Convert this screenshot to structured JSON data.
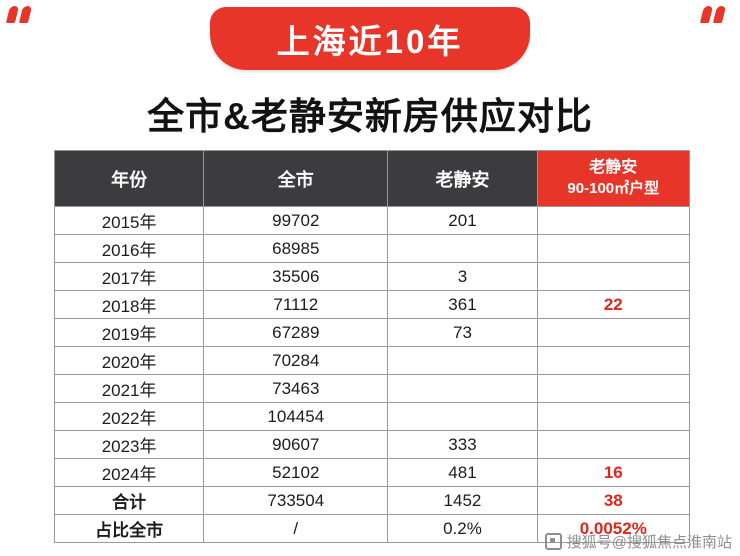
{
  "banner": {
    "label": "上海近10年",
    "color": "#e8352a"
  },
  "title": "全市&老静安新房供应对比",
  "chart_data": {
    "type": "table",
    "title": "全市&老静安新房供应对比",
    "columns": [
      "年份",
      "全市",
      "老静安",
      "老静安 90-100㎡户型"
    ],
    "header_col4_line1": "老静安",
    "header_col4_line2": "90-100㎡户型",
    "rows": [
      [
        "2015年",
        "99702",
        "201",
        ""
      ],
      [
        "2016年",
        "68985",
        "",
        ""
      ],
      [
        "2017年",
        "35506",
        "3",
        ""
      ],
      [
        "2018年",
        "71112",
        "361",
        "22"
      ],
      [
        "2019年",
        "67289",
        "73",
        ""
      ],
      [
        "2020年",
        "70284",
        "",
        ""
      ],
      [
        "2021年",
        "73463",
        "",
        ""
      ],
      [
        "2022年",
        "104454",
        "",
        ""
      ],
      [
        "2023年",
        "90607",
        "333",
        ""
      ],
      [
        "2024年",
        "52102",
        "481",
        "16"
      ],
      [
        "合计",
        "733504",
        "1452",
        "38"
      ],
      [
        "占比全市",
        "/",
        "0.2%",
        "0.0052%"
      ]
    ],
    "header_bg": "#3c3c3e",
    "header_highlight_bg": "#e8352a",
    "highlight_text_color": "#e0261c"
  },
  "watermark": {
    "text": "搜狐号@搜狐焦点淮南站"
  }
}
